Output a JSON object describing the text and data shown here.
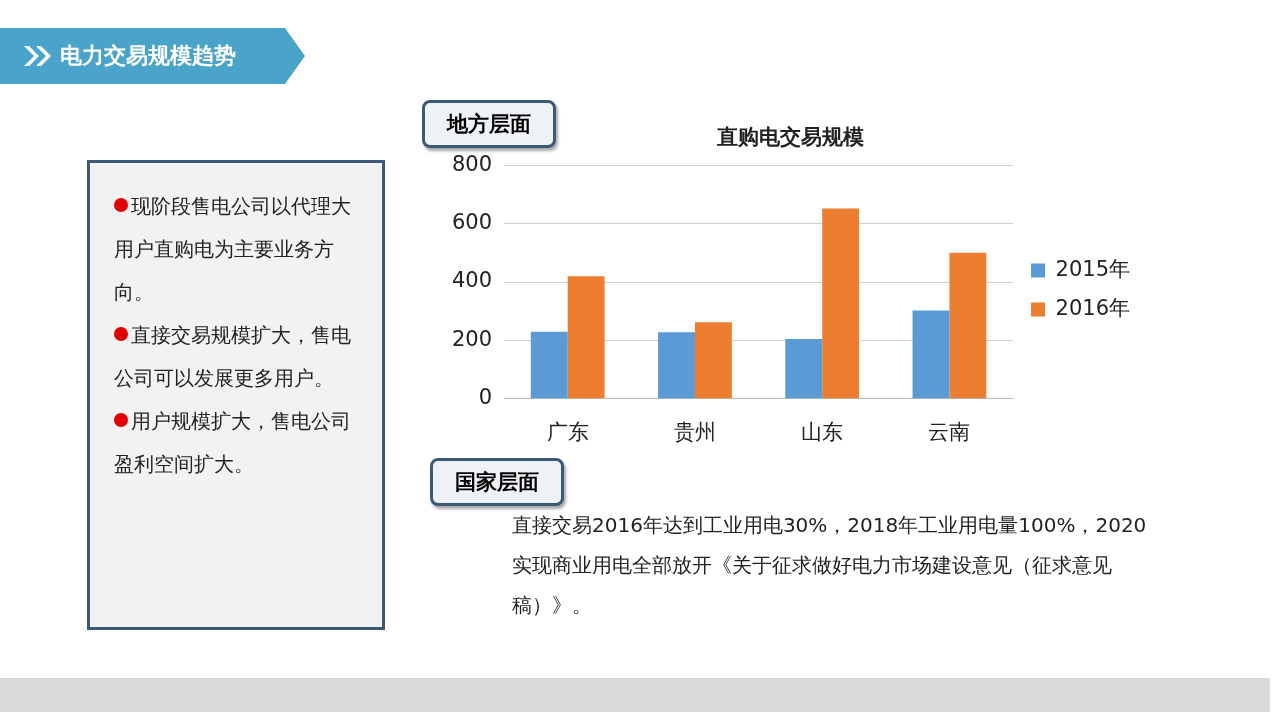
{
  "chart_data": {
    "type": "bar",
    "title": "直购电交易规模",
    "categories": [
      "广东",
      "贵州",
      "山东",
      "云南"
    ],
    "series": [
      {
        "name": "2015年",
        "color": "#5b9bd5",
        "values": [
          230,
          228,
          205,
          302
        ]
      },
      {
        "name": "2016年",
        "color": "#ed7d31",
        "values": [
          420,
          262,
          652,
          500
        ]
      }
    ],
    "ylim": [
      0,
      800
    ],
    "yticks": [
      0,
      200,
      400,
      600,
      800
    ],
    "grid": "y",
    "legend": "right",
    "annotations": [
      "电力交易规模趋势",
      "地方层面",
      "现阶段售电公司以代理大用户直购电为主要业务方向。",
      "直接交易规模扩大，售电公司可以发展更多用户。",
      "用户规模扩大，售电公司盈利空间扩大。",
      "国家层面",
      "直接交易2016年达到工业用电30%，2018年工业用电量100%，2020实现商业用电全部放开《关于征求做好电力市场建设意见（征求意见稿）》。"
    ]
  }
}
